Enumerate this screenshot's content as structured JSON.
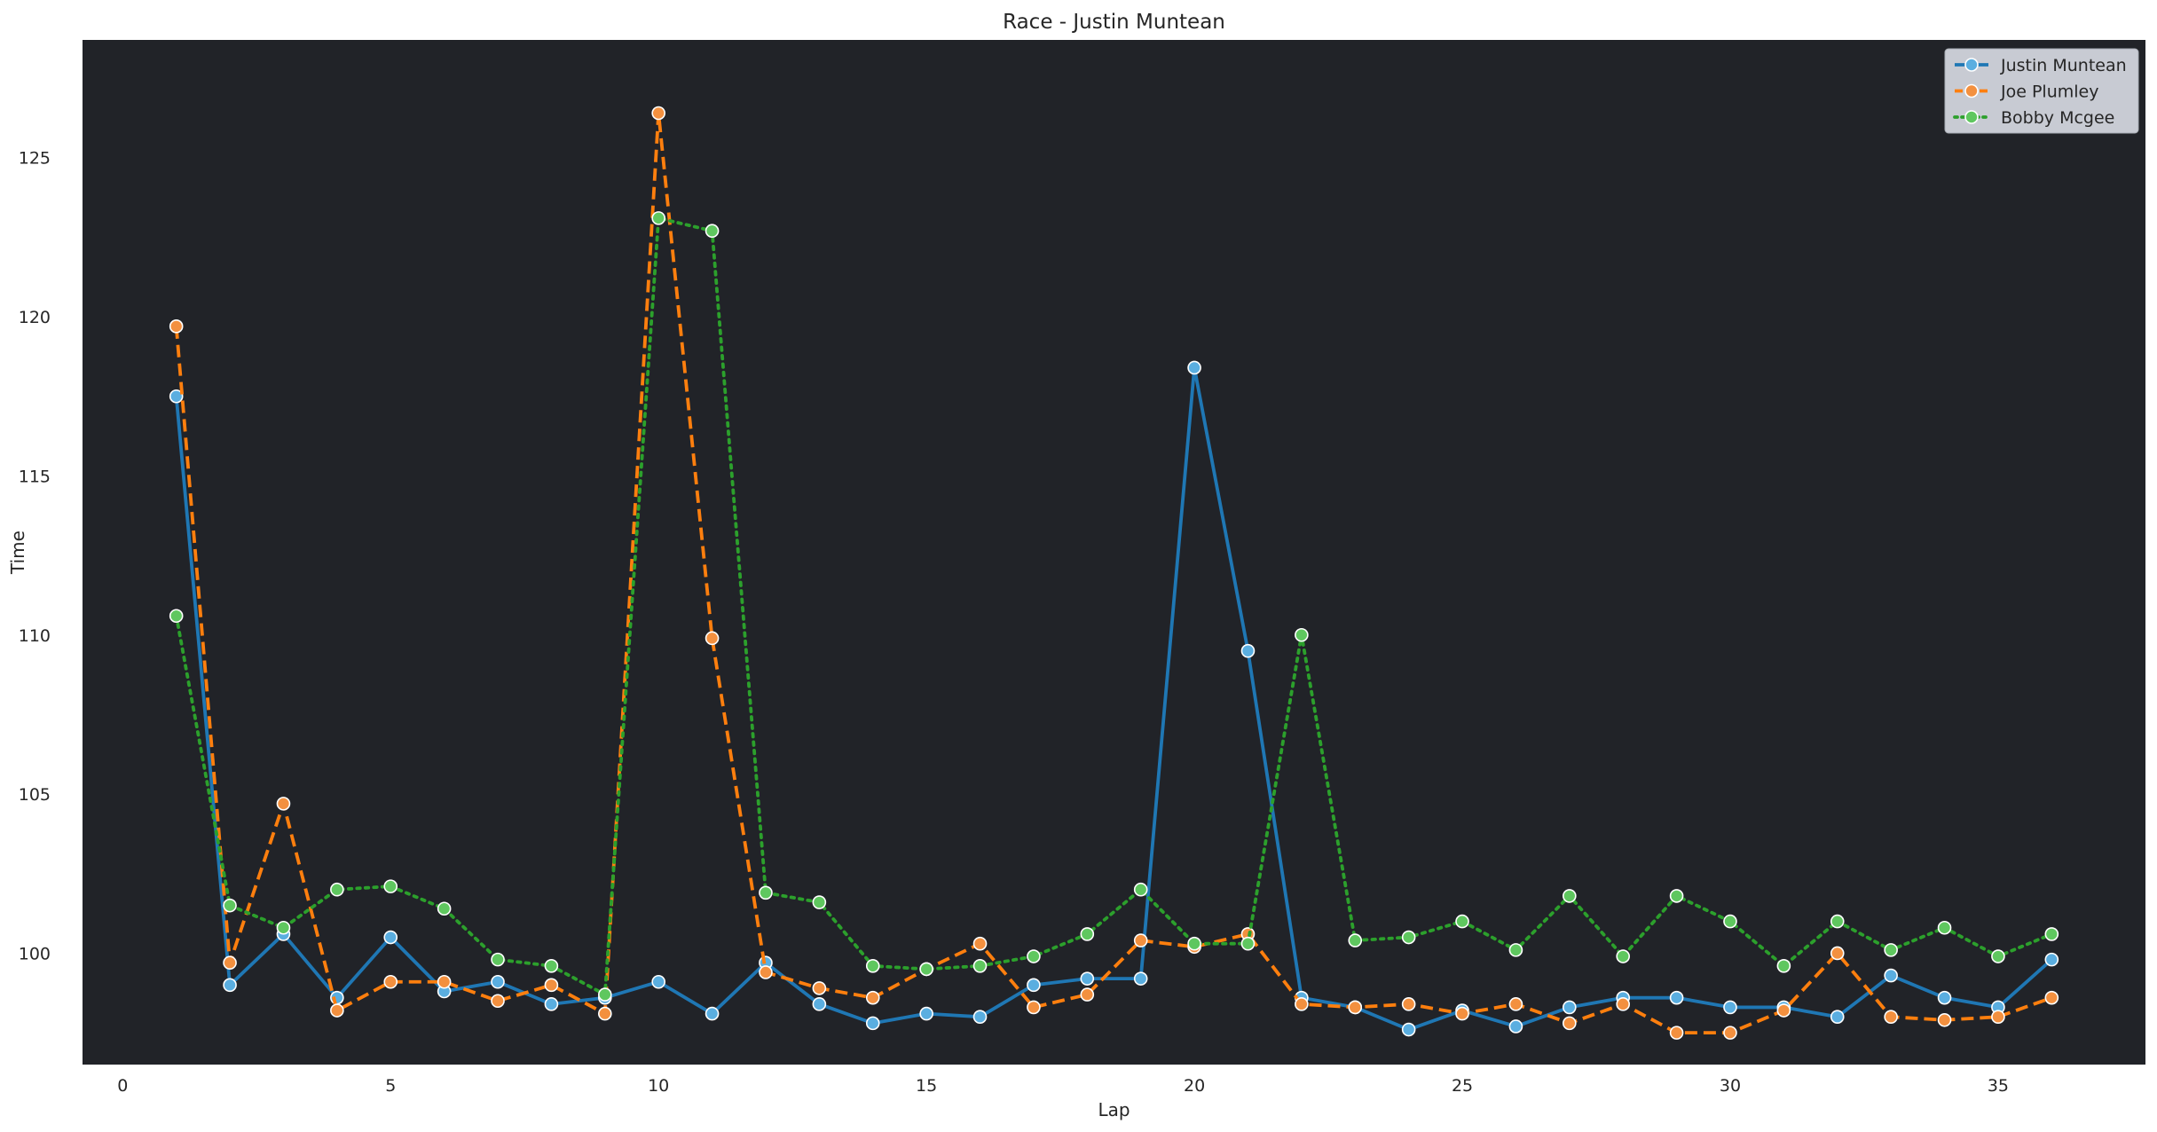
{
  "chart_data": {
    "type": "line",
    "title": "Race - Justin Muntean",
    "xlabel": "Lap",
    "ylabel": "Time",
    "xlim": [
      -0.75,
      37.75
    ],
    "ylim": [
      96.5,
      128.7
    ],
    "xticks": [
      0,
      5,
      10,
      15,
      20,
      25,
      30,
      35
    ],
    "yticks": [
      100,
      105,
      110,
      115,
      120,
      125
    ],
    "grid": false,
    "legend_position": "top-right",
    "plot_background": "#212328",
    "x": [
      1,
      2,
      3,
      4,
      5,
      6,
      7,
      8,
      9,
      10,
      11,
      12,
      13,
      14,
      15,
      16,
      17,
      18,
      19,
      20,
      21,
      22,
      23,
      24,
      25,
      26,
      27,
      28,
      29,
      30,
      31,
      32,
      33,
      34,
      35,
      36
    ],
    "series": [
      {
        "name": "Justin Muntean",
        "color": "#1f77b4",
        "marker_fill": "#5aaee0",
        "linestyle": "solid",
        "values": [
          117.5,
          99.0,
          100.6,
          98.6,
          100.5,
          98.8,
          99.1,
          98.4,
          98.6,
          99.1,
          98.1,
          99.7,
          98.4,
          97.8,
          98.1,
          98.0,
          99.0,
          99.2,
          99.2,
          118.4,
          109.5,
          98.6,
          98.3,
          97.6,
          98.2,
          97.7,
          98.3,
          98.6,
          98.6,
          98.3,
          98.3,
          98.0,
          99.3,
          98.6,
          98.3,
          99.8
        ]
      },
      {
        "name": "Joe Plumley",
        "color": "#ff7f0e",
        "marker_fill": "#f3903f",
        "linestyle": "dashed",
        "values": [
          119.7,
          99.7,
          104.7,
          98.2,
          99.1,
          99.1,
          98.5,
          99.0,
          98.1,
          126.4,
          109.9,
          99.4,
          98.9,
          98.6,
          99.5,
          100.3,
          98.3,
          98.7,
          100.4,
          100.2,
          100.6,
          98.4,
          98.3,
          98.4,
          98.1,
          98.4,
          97.8,
          98.4,
          97.5,
          97.5,
          98.2,
          100.0,
          98.0,
          97.9,
          98.0,
          98.6
        ]
      },
      {
        "name": "Bobby Mcgee",
        "color": "#2ca02c",
        "marker_fill": "#5fc75f",
        "linestyle": "dotted",
        "values": [
          110.6,
          101.5,
          100.8,
          102.0,
          102.1,
          101.4,
          99.8,
          99.6,
          98.7,
          123.1,
          122.7,
          101.9,
          101.6,
          99.6,
          99.5,
          99.6,
          99.9,
          100.6,
          102.0,
          100.3,
          100.3,
          110.0,
          100.4,
          100.5,
          101.0,
          100.1,
          101.8,
          99.9,
          101.8,
          101.0,
          99.6,
          101.0,
          100.1,
          100.8,
          99.9,
          100.6
        ]
      }
    ]
  }
}
